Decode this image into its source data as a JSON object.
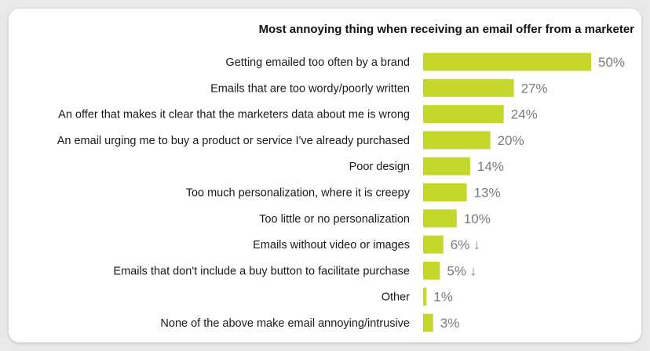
{
  "chart_data": {
    "type": "bar",
    "orientation": "horizontal",
    "title": "Most annoying thing when receiving an email offer from a marketer",
    "categories": [
      "Getting emailed too often by a brand",
      "Emails that are too wordy/poorly written",
      "An offer that makes it clear that the marketers data about me is wrong",
      "An email urging me to buy a product or service I've already purchased",
      "Poor design",
      "Too much personalization, where it is creepy",
      "Too little or no personalization",
      "Emails without video or images",
      "Emails that don't include a buy button to facilitate purchase",
      "Other",
      "None of the above make email annoying/intrusive"
    ],
    "values": [
      50,
      27,
      24,
      20,
      14,
      13,
      10,
      6,
      5,
      1,
      3
    ],
    "value_labels": [
      "50%",
      "27%",
      "24%",
      "20%",
      "14%",
      "13%",
      "10%",
      "6% ↓",
      "5% ↓",
      "1%",
      "3%"
    ],
    "unit": "%",
    "bar_color": "#c4d72a",
    "grid": false,
    "legend": "none"
  }
}
